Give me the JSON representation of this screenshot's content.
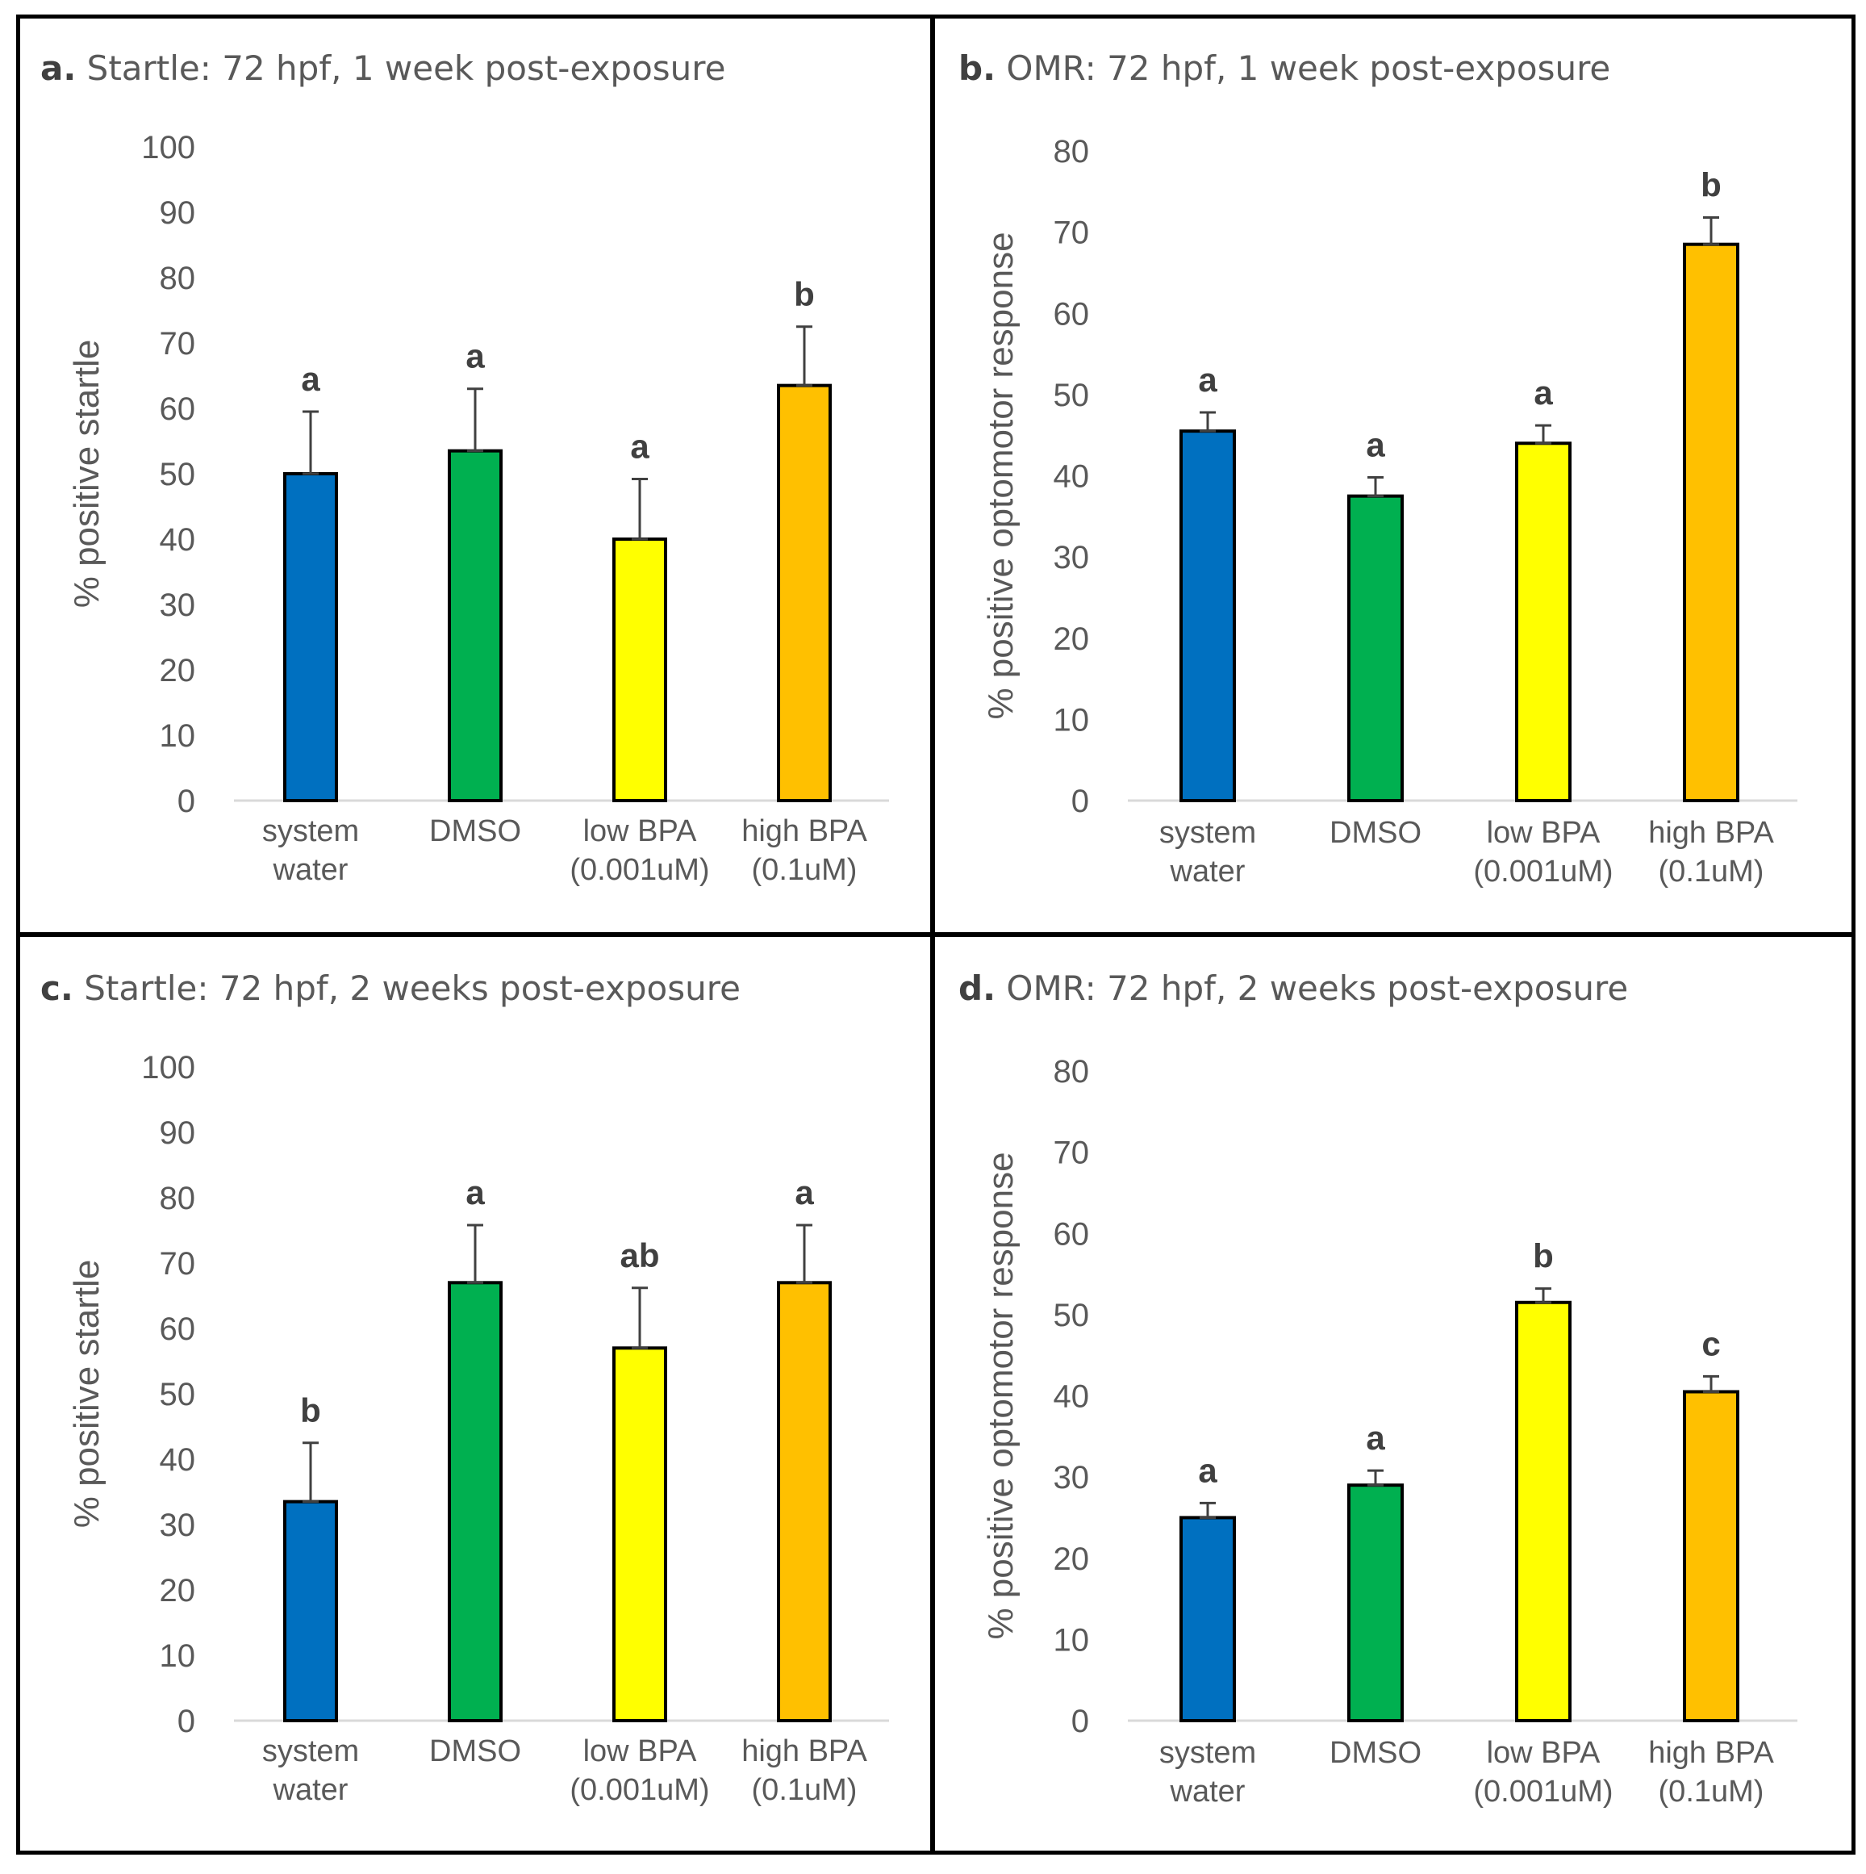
{
  "colors": {
    "system_water": "#0070C0",
    "DMSO": "#00B050",
    "low_BPA": "#FFFF00",
    "high_BPA": "#FFC000",
    "axis_text": "#595959",
    "axis_line": "#D9D9D9"
  },
  "chart_data": [
    {
      "type": "bar",
      "panel_letter": "a.",
      "title": "Startle: 72 hpf, 1 week post-exposure",
      "ylabel": "% positive startle",
      "xlabel": "",
      "ylim": [
        0,
        100
      ],
      "yticks": [
        0,
        10,
        20,
        30,
        40,
        50,
        60,
        70,
        80,
        90,
        100
      ],
      "categories": [
        [
          "system",
          "water"
        ],
        [
          "DMSO"
        ],
        [
          "low BPA",
          "(0.001uM)"
        ],
        [
          "high BPA",
          "(0.1uM)"
        ]
      ],
      "values": [
        50,
        53.5,
        40,
        63.5
      ],
      "errors": [
        9.5,
        9.5,
        9.2,
        9
      ],
      "letters": [
        "a",
        "a",
        "a",
        "b"
      ]
    },
    {
      "type": "bar",
      "panel_letter": "b.",
      "title": "OMR: 72 hpf, 1 week post-exposure",
      "ylabel": "% positive optomotor response",
      "xlabel": "",
      "ylim": [
        0,
        80
      ],
      "yticks": [
        0,
        10,
        20,
        30,
        40,
        50,
        60,
        70,
        80
      ],
      "categories": [
        [
          "system",
          "water"
        ],
        [
          "DMSO"
        ],
        [
          "low BPA",
          "(0.001uM)"
        ],
        [
          "high BPA",
          "(0.1uM)"
        ]
      ],
      "values": [
        45.5,
        37.5,
        44,
        68.5
      ],
      "errors": [
        2.3,
        2.3,
        2.2,
        3.3
      ],
      "letters": [
        "a",
        "a",
        "a",
        "b"
      ]
    },
    {
      "type": "bar",
      "panel_letter": "c.",
      "title": "Startle: 72 hpf, 2 weeks post-exposure",
      "ylabel": "% positive startle",
      "xlabel": "",
      "ylim": [
        0,
        100
      ],
      "yticks": [
        0,
        10,
        20,
        30,
        40,
        50,
        60,
        70,
        80,
        90,
        100
      ],
      "categories": [
        [
          "system",
          "water"
        ],
        [
          "DMSO"
        ],
        [
          "low BPA",
          "(0.001uM)"
        ],
        [
          "high BPA",
          "(0.1uM)"
        ]
      ],
      "values": [
        33.5,
        67,
        57,
        67
      ],
      "errors": [
        9,
        8.8,
        9.2,
        8.8
      ],
      "letters": [
        "b",
        "a",
        "ab",
        "a"
      ]
    },
    {
      "type": "bar",
      "panel_letter": "d.",
      "title": "OMR: 72 hpf, 2 weeks post-exposure",
      "ylabel": "% positive optomotor response",
      "xlabel": "",
      "ylim": [
        0,
        80
      ],
      "yticks": [
        0,
        10,
        20,
        30,
        40,
        50,
        60,
        70,
        80
      ],
      "categories": [
        [
          "system",
          "water"
        ],
        [
          "DMSO"
        ],
        [
          "low BPA",
          "(0.001uM)"
        ],
        [
          "high BPA",
          "(0.1uM)"
        ]
      ],
      "values": [
        25,
        29,
        51.5,
        40.5
      ],
      "errors": [
        1.8,
        1.8,
        1.7,
        1.9
      ],
      "letters": [
        "a",
        "a",
        "b",
        "c"
      ]
    }
  ]
}
